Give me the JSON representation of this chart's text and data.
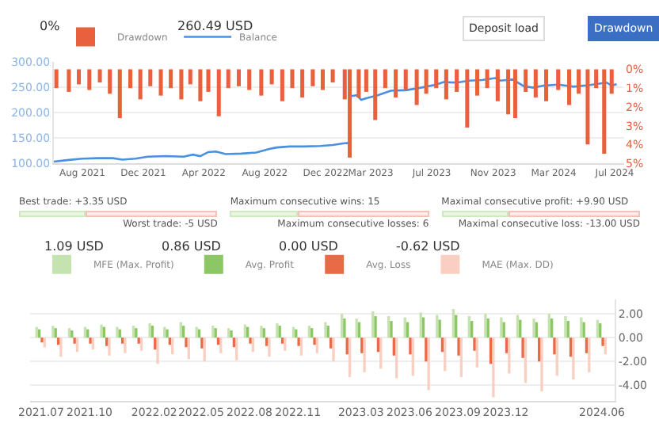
{
  "chart_data": [
    {
      "type": "bar",
      "annotations": [
        "0%",
        "260.49 USD",
        "Deposit load",
        "Drawdown"
      ],
      "legend": "top left",
      "grid": "y",
      "marker": "none",
      "xlim": [
        "2021-06-05",
        "2024-07-20"
      ],
      "xticks": [
        {
          "value": "2021-08-01",
          "label": "Aug 2021"
        },
        {
          "value": "2021-12-01",
          "label": "Dec 2021"
        },
        {
          "value": "2022-04-01",
          "label": "Apr 2022"
        },
        {
          "value": "2022-08-01",
          "label": "Aug 2022"
        },
        {
          "value": "2022-12-01",
          "label": "Dec 2022"
        },
        {
          "value": "2023-03-01",
          "label": "Mar 2023"
        },
        {
          "value": "2023-07-01",
          "label": "Jul 2023"
        },
        {
          "value": "2023-11-01",
          "label": "Nov 2023"
        },
        {
          "value": "2024-03-01",
          "label": "Mar 2024"
        },
        {
          "value": "2024-07-01",
          "label": "Jul 2024"
        }
      ],
      "ylim": [
        100,
        300
      ],
      "yticks": [
        {
          "value": 100,
          "label": "100.00"
        },
        {
          "value": 150,
          "label": "150.00"
        },
        {
          "value": 200,
          "label": "200.00"
        },
        {
          "value": 250,
          "label": "250.00"
        },
        {
          "value": 300,
          "label": "300.00"
        }
      ],
      "y2lim": [
        5,
        -0.4
      ],
      "y2ticks": [
        {
          "value": 0,
          "label": "0%"
        },
        {
          "value": 1,
          "label": "1%"
        },
        {
          "value": 2,
          "label": "2%"
        },
        {
          "value": 3,
          "label": "3%"
        },
        {
          "value": 4,
          "label": "4%"
        },
        {
          "value": 5,
          "label": "5%"
        }
      ],
      "series": [
        {
          "name": "Drawdown",
          "type": "bar",
          "axis": "y2",
          "color": "#e8603c",
          "x": [
            "2021-06-10",
            "2021-07-05",
            "2021-07-25",
            "2021-08-15",
            "2021-09-05",
            "2021-09-25",
            "2021-10-15",
            "2021-11-05",
            "2021-11-25",
            "2021-12-15",
            "2022-01-05",
            "2022-01-25",
            "2022-02-15",
            "2022-03-05",
            "2022-03-25",
            "2022-04-10",
            "2022-05-01",
            "2022-05-20",
            "2022-06-10",
            "2022-07-01",
            "2022-07-25",
            "2022-08-15",
            "2022-09-05",
            "2022-09-25",
            "2022-10-15",
            "2022-11-05",
            "2022-11-25",
            "2022-12-15",
            "2023-01-08",
            "2023-01-18",
            "2023-02-05",
            "2023-02-20",
            "2023-03-10",
            "2023-03-30",
            "2023-04-20",
            "2023-05-10",
            "2023-06-01",
            "2023-06-20",
            "2023-07-10",
            "2023-07-30",
            "2023-08-20",
            "2023-09-10",
            "2023-09-30",
            "2023-10-20",
            "2023-11-10",
            "2023-12-01",
            "2023-12-15",
            "2024-01-05",
            "2024-01-25",
            "2024-02-15",
            "2024-03-10",
            "2024-04-01",
            "2024-04-20",
            "2024-05-08",
            "2024-05-25",
            "2024-06-10",
            "2024-06-25"
          ],
          "values": [
            1.0,
            1.2,
            0.8,
            1.1,
            0.7,
            1.3,
            2.6,
            1.0,
            1.6,
            0.9,
            1.4,
            1.0,
            1.6,
            0.8,
            1.7,
            1.2,
            2.5,
            1.0,
            0.9,
            1.1,
            1.4,
            0.8,
            1.7,
            1.0,
            1.5,
            0.9,
            1.1,
            0.7,
            1.6,
            4.7,
            1.5,
            1.2,
            2.7,
            1.0,
            1.5,
            1.1,
            1.9,
            1.3,
            1.0,
            1.6,
            1.2,
            3.1,
            1.4,
            1.0,
            1.7,
            2.4,
            2.6,
            1.2,
            1.5,
            1.7,
            1.1,
            1.9,
            1.3,
            4.0,
            1.0,
            4.5,
            1.3
          ]
        },
        {
          "name": "Balance",
          "type": "line",
          "color": "#4a90e2",
          "x": [
            "2021-06-05",
            "2021-07-01",
            "2021-08-01",
            "2021-09-01",
            "2021-10-01",
            "2021-10-20",
            "2021-11-15",
            "2021-12-10",
            "2022-01-15",
            "2022-02-20",
            "2022-03-10",
            "2022-03-25",
            "2022-04-10",
            "2022-04-25",
            "2022-05-15",
            "2022-06-15",
            "2022-07-15",
            "2022-08-10",
            "2022-08-25",
            "2022-09-20",
            "2022-10-20",
            "2022-11-20",
            "2022-12-15",
            "2023-01-05",
            "2023-01-15",
            "2023-01-18",
            "2023-01-19",
            "2023-02-01",
            "2023-02-10",
            "2023-02-20",
            "2023-03-15",
            "2023-04-10",
            "2023-05-10",
            "2023-06-10",
            "2023-07-10",
            "2023-07-25",
            "2023-08-20",
            "2023-09-15",
            "2023-10-10",
            "2023-11-05",
            "2023-11-15",
            "2023-12-10",
            "2024-01-01",
            "2024-01-20",
            "2024-02-10",
            "2024-03-10",
            "2024-04-10",
            "2024-05-10",
            "2024-06-01",
            "2024-06-15",
            "2024-06-25",
            "2024-07-05"
          ],
          "values": [
            103,
            106,
            109,
            110,
            110,
            107,
            109,
            113,
            114,
            113,
            117,
            114,
            122,
            123,
            118,
            119,
            121,
            128,
            131,
            133,
            133,
            134,
            136,
            139,
            140,
            131,
            232,
            234,
            225,
            228,
            234,
            243,
            244,
            249,
            255,
            260,
            259,
            263,
            264,
            268,
            263,
            265,
            252,
            249,
            253,
            255,
            251,
            254,
            257,
            259,
            253,
            256
          ]
        }
      ]
    },
    {
      "type": "other",
      "annotations": [
        "Best trade: +3.35 USD",
        "Worst trade: -5 USD",
        "Maximum consecutive wins: 15",
        "Maximum consecutive losses: 6",
        "Maximal consecutive profit: +9.90 USD",
        "Maximal consecutive loss: -13.00 USD"
      ]
    },
    {
      "type": "bar",
      "annotations": [
        "1.09 USD",
        "0.86 USD",
        "0.00 USD",
        "-0.62 USD"
      ],
      "legend": "top left",
      "grid": "y",
      "x": [
        "2021-07",
        "2021-08",
        "2021-09",
        "2021-10",
        "2021-11",
        "2021-12",
        "2022-01",
        "2022-02",
        "2022-03",
        "2022-04",
        "2022-05",
        "2022-06",
        "2022-07",
        "2022-08",
        "2022-09",
        "2022-10",
        "2022-11",
        "2022-12",
        "2023-01",
        "2023-02",
        "2023-03",
        "2023-04",
        "2023-05",
        "2023-06",
        "2023-07",
        "2023-08",
        "2023-09",
        "2023-10",
        "2023-11",
        "2023-12",
        "2024-01",
        "2024-02",
        "2024-03",
        "2024-04",
        "2024-05",
        "2024-06"
      ],
      "xlim": [
        "2021-06-10",
        "2024-06-25"
      ],
      "xticks": [
        {
          "value": "2021-07-01",
          "label": "2021.07"
        },
        {
          "value": "2021-10-01",
          "label": "2021.10"
        },
        {
          "value": "2022-02-01",
          "label": "2022.02"
        },
        {
          "value": "2022-05-01",
          "label": "2022.05"
        },
        {
          "value": "2022-08-01",
          "label": "2022.08"
        },
        {
          "value": "2022-11-01",
          "label": "2022.11"
        },
        {
          "value": "2023-03-01",
          "label": "2023.03"
        },
        {
          "value": "2023-06-01",
          "label": "2023.06"
        },
        {
          "value": "2023-09-01",
          "label": "2023.09"
        },
        {
          "value": "2023-12-01",
          "label": "2023.12"
        },
        {
          "value": "2024-06-01",
          "label": "2024.06"
        }
      ],
      "ylim": [
        -5.3,
        3.2
      ],
      "yticks": [
        {
          "value": -4,
          "label": "-4.00"
        },
        {
          "value": -2,
          "label": "-2.00"
        },
        {
          "value": 0,
          "label": "0.00"
        },
        {
          "value": 2,
          "label": "2.00"
        }
      ],
      "series": [
        {
          "name": "MFE (Max. Profit)",
          "color": "#c5e3ae",
          "values": [
            0.9,
            1.0,
            0.8,
            0.9,
            1.1,
            0.9,
            1.0,
            1.2,
            0.9,
            1.3,
            0.9,
            1.0,
            0.8,
            1.1,
            1.0,
            1.2,
            0.9,
            1.0,
            1.3,
            2.0,
            1.6,
            2.2,
            1.8,
            1.7,
            2.1,
            1.9,
            2.4,
            1.8,
            2.0,
            1.7,
            1.9,
            1.6,
            2.0,
            1.8,
            1.7,
            1.5
          ]
        },
        {
          "name": "Avg. Profit",
          "color": "#8cc665",
          "values": [
            0.7,
            0.8,
            0.6,
            0.7,
            0.9,
            0.7,
            0.8,
            1.0,
            0.7,
            1.0,
            0.7,
            0.8,
            0.6,
            0.9,
            0.8,
            1.0,
            0.7,
            0.8,
            1.0,
            1.6,
            1.3,
            1.8,
            1.4,
            1.3,
            1.7,
            1.5,
            1.9,
            1.4,
            1.6,
            1.3,
            1.5,
            1.3,
            1.6,
            1.4,
            1.3,
            1.2
          ]
        },
        {
          "name": "Avg. Loss",
          "color": "#e96a47",
          "values": [
            -0.4,
            -0.6,
            -0.5,
            -0.5,
            -0.7,
            -0.5,
            -0.5,
            -1.0,
            -0.6,
            -0.8,
            -0.9,
            -0.6,
            -0.8,
            -0.5,
            -0.7,
            -0.5,
            -0.7,
            -0.6,
            -0.9,
            -1.4,
            -1.3,
            -1.2,
            -1.5,
            -1.4,
            -2.0,
            -1.2,
            -1.5,
            -1.1,
            -2.2,
            -1.3,
            -1.7,
            -2.0,
            -1.4,
            -1.6,
            -1.3,
            -0.7
          ]
        },
        {
          "name": "MAE (Max. DD)",
          "color": "#f9cfc1",
          "values": [
            -0.8,
            -1.6,
            -1.2,
            -1.0,
            -1.5,
            -1.3,
            -1.1,
            -2.2,
            -1.4,
            -1.8,
            -2.0,
            -1.3,
            -1.9,
            -1.2,
            -1.6,
            -1.1,
            -1.5,
            -1.3,
            -2.0,
            -3.3,
            -2.9,
            -2.6,
            -3.4,
            -3.2,
            -4.4,
            -2.8,
            -3.3,
            -2.5,
            -5.0,
            -3.0,
            -3.8,
            -4.5,
            -3.2,
            -3.5,
            -2.9,
            -1.4
          ]
        }
      ]
    }
  ]
}
